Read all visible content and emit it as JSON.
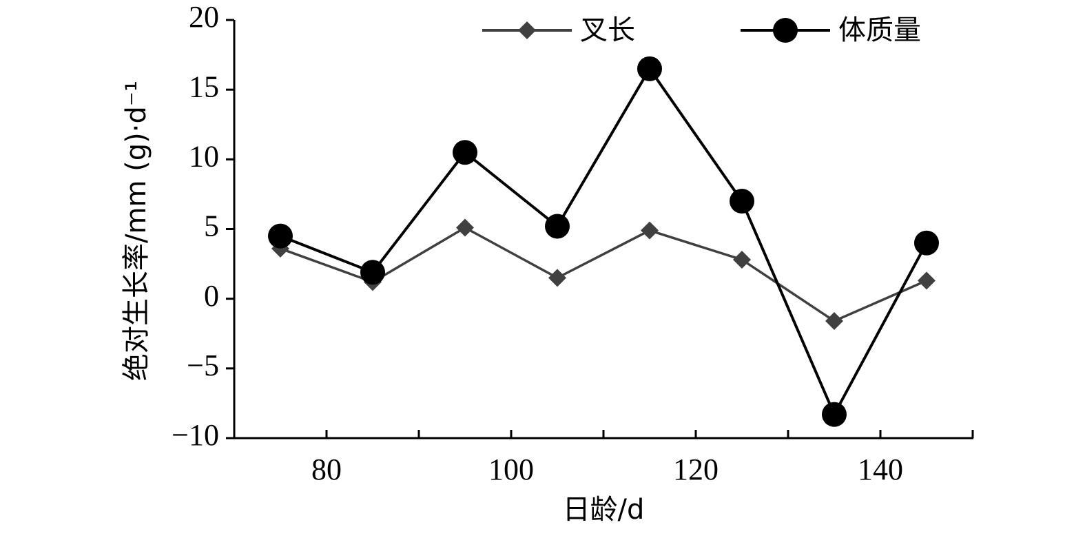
{
  "chart_data": {
    "type": "line",
    "xlabel": "日龄/d",
    "ylabel": "绝对生长率/mm (g)·d⁻¹",
    "x": [
      75,
      85,
      95,
      105,
      115,
      125,
      135,
      145
    ],
    "series": [
      {
        "name": "叉长",
        "color": "#404040",
        "marker": "diamond",
        "values": [
          3.6,
          1.2,
          5.1,
          1.5,
          4.9,
          2.8,
          -1.6,
          1.3
        ]
      },
      {
        "name": "体质量",
        "color": "#000000",
        "marker": "circle",
        "values": [
          4.5,
          1.9,
          10.5,
          5.2,
          16.5,
          7.0,
          -8.3,
          4.0
        ]
      }
    ],
    "xlim": [
      70,
      150
    ],
    "xticks": [
      80,
      100,
      120,
      140
    ],
    "xminor_ticks": [
      70,
      90,
      110,
      130,
      150
    ],
    "ylim": [
      -10,
      20
    ],
    "yticks": [
      {
        "value": -10,
        "label": "−10"
      },
      {
        "value": -5,
        "label": "−5"
      },
      0,
      5,
      10,
      15,
      20
    ],
    "legend": "top"
  }
}
